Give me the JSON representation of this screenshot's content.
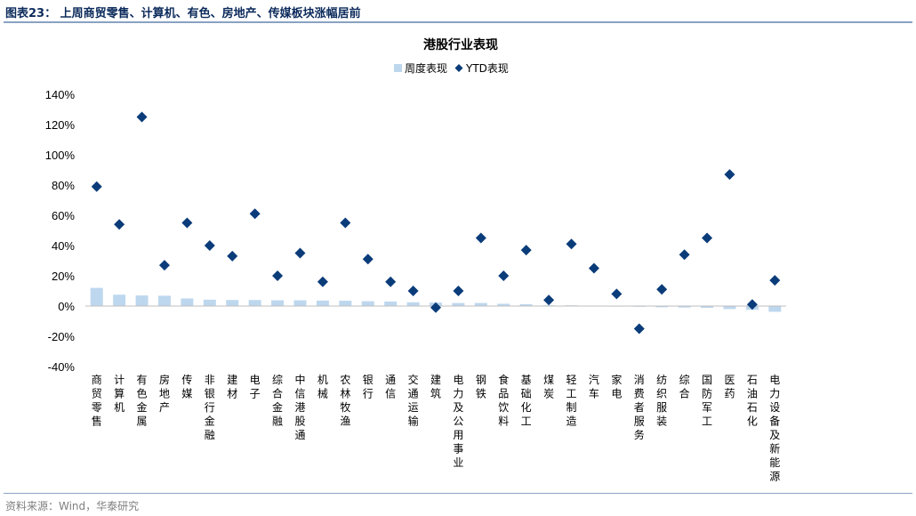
{
  "caption": "图表23：  上周商贸零售、计算机、有色、房地产、传媒板块涨幅居前",
  "source": "资料来源：Wind，华泰研究",
  "colors": {
    "bar": "#bdd7ee",
    "marker": "#0b3c7a",
    "axis": "#bfbfbf",
    "rule": "#8aa2c3"
  },
  "chart_data": {
    "type": "bar",
    "title": "港股行业表现",
    "legend": "top",
    "grid": false,
    "ylim": [
      -40,
      140
    ],
    "yticks": [
      "140%",
      "120%",
      "100%",
      "80%",
      "60%",
      "40%",
      "20%",
      "0%",
      "-20%",
      "-40%"
    ],
    "categories": [
      "商贸零售",
      "计算机",
      "有色金属",
      "房地产",
      "传媒",
      "非银行金融",
      "建材",
      "电子",
      "综合金融",
      "中信港股通",
      "机械",
      "农林牧渔",
      "银行",
      "通信",
      "交通运输",
      "建筑",
      "电力及公用事业",
      "钢铁",
      "食品饮料",
      "基础化工",
      "煤炭",
      "轻工制造",
      "汽车",
      "家电",
      "消费者服务",
      "纺织服装",
      "综合",
      "国防军工",
      "医药",
      "石油石化",
      "电力设备及新能源"
    ],
    "series": [
      {
        "name": "周度表现",
        "type": "bar",
        "values": [
          12,
          7.5,
          7,
          6.8,
          5,
          4.2,
          4,
          4,
          3.8,
          3.8,
          3.6,
          3.5,
          3.2,
          3,
          2.5,
          2.3,
          2,
          2,
          1.5,
          1.2,
          0.5,
          0.5,
          0.3,
          0,
          -0.5,
          -0.8,
          -1,
          -1.2,
          -2,
          -2.5,
          -3.8
        ]
      },
      {
        "name": "YTD表现",
        "type": "scatter",
        "values": [
          79,
          54,
          125,
          27,
          55,
          40,
          33,
          61,
          20,
          35,
          16,
          55,
          31,
          16,
          10,
          -1,
          10,
          45,
          20,
          37,
          4,
          41,
          25,
          8,
          -15,
          11,
          34,
          45,
          87,
          1,
          17
        ]
      }
    ]
  }
}
